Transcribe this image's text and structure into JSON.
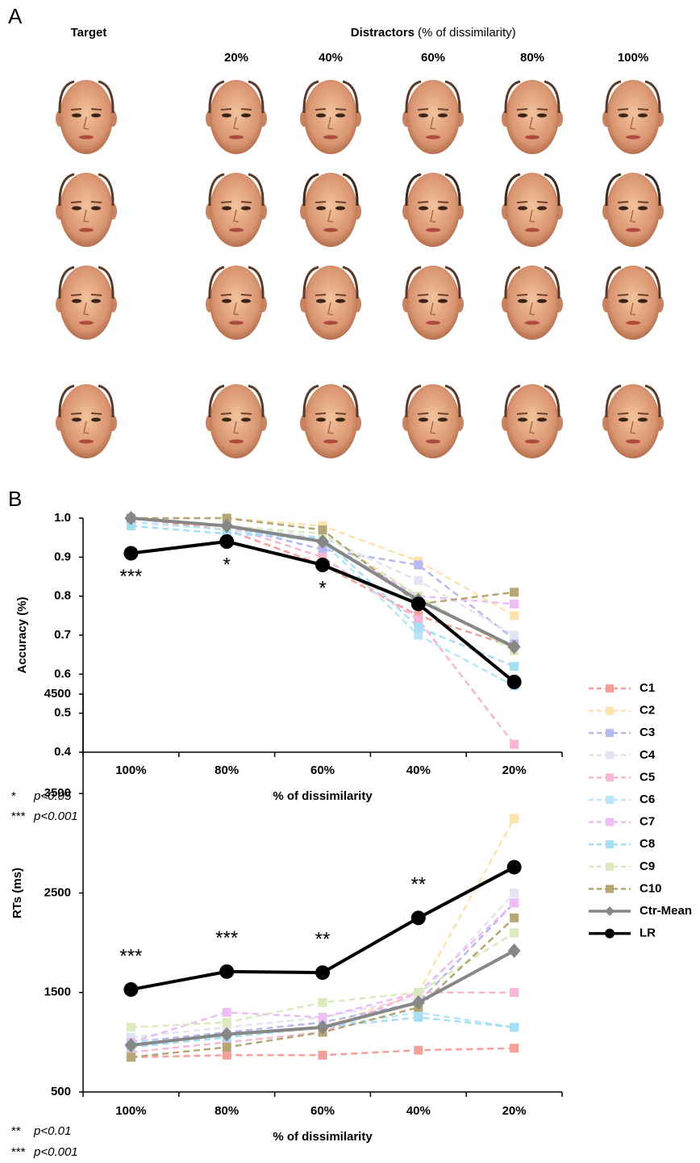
{
  "panel_a": {
    "label": "A",
    "target": "Target",
    "distractors": "Distractors",
    "distractors_note": "(% of dissimilarity)",
    "columns": [
      "20%",
      "40%",
      "60%",
      "80%",
      "100%"
    ]
  },
  "panel_b_label": "B",
  "chart_data": [
    {
      "type": "line",
      "y_label": "Accuracy (%)",
      "x_label": "% of dissimilarity",
      "categories": [
        "100%",
        "80%",
        "60%",
        "40%",
        "20%"
      ],
      "ylim": [
        0.4,
        1.0
      ],
      "yticks": [
        0.4,
        0.5,
        0.6,
        0.7,
        0.8,
        0.9,
        {
          "value": 1,
          "label": "1.0"
        }
      ],
      "significance": [
        "***",
        "*",
        "*",
        null,
        null
      ],
      "footnotes": [
        {
          "symbol": "*",
          "text": "p<0.05"
        },
        {
          "symbol": "***",
          "text": "p<0.001"
        }
      ],
      "series": [
        {
          "name": "C1",
          "color": "#f4a09a",
          "marker": "square",
          "dashed": true,
          "values": [
            1.0,
            0.97,
            0.88,
            0.75,
            0.67
          ]
        },
        {
          "name": "C2",
          "color": "#fde2ad",
          "marker": "square",
          "dashed": true,
          "values": [
            1.0,
            1.0,
            0.98,
            0.89,
            0.75
          ]
        },
        {
          "name": "C3",
          "color": "#b6b8f0",
          "marker": "square",
          "dashed": true,
          "values": [
            1.0,
            0.98,
            0.92,
            0.88,
            0.69
          ]
        },
        {
          "name": "C4",
          "color": "#e2e4f4",
          "marker": "square",
          "dashed": true,
          "values": [
            1.0,
            0.98,
            0.95,
            0.84,
            0.7
          ]
        },
        {
          "name": "C5",
          "color": "#f8b6d6",
          "marker": "square",
          "dashed": true,
          "values": [
            1.0,
            0.98,
            0.9,
            0.74,
            0.42
          ]
        },
        {
          "name": "C6",
          "color": "#b6e6f8",
          "marker": "square",
          "dashed": true,
          "values": [
            0.99,
            0.97,
            0.94,
            0.7,
            0.57
          ]
        },
        {
          "name": "C7",
          "color": "#ecbef4",
          "marker": "square",
          "dashed": true,
          "values": [
            1.0,
            0.98,
            0.94,
            0.8,
            0.78
          ]
        },
        {
          "name": "C8",
          "color": "#a6def4",
          "marker": "square",
          "dashed": true,
          "values": [
            0.98,
            0.96,
            0.95,
            0.72,
            0.62
          ]
        },
        {
          "name": "C9",
          "color": "#daeabe",
          "marker": "square",
          "dashed": true,
          "values": [
            1.0,
            0.98,
            0.96,
            0.8,
            0.66
          ]
        },
        {
          "name": "C10",
          "color": "#b6a676",
          "marker": "square",
          "dashed": true,
          "values": [
            1.0,
            1.0,
            0.97,
            0.78,
            0.81
          ]
        },
        {
          "name": "Ctr-Mean",
          "color": "#878787",
          "marker": "diamond",
          "dashed": false,
          "values": [
            1.0,
            0.98,
            0.94,
            0.79,
            0.67
          ]
        },
        {
          "name": "LR",
          "color": "#000000",
          "marker": "circle",
          "dashed": false,
          "values": [
            0.91,
            0.94,
            0.88,
            0.78,
            0.58
          ]
        }
      ]
    },
    {
      "type": "line",
      "y_label": "RTs (ms)",
      "x_label": "% of dissimilarity",
      "categories": [
        "100%",
        "80%",
        "60%",
        "40%",
        "20%"
      ],
      "ylim": [
        500,
        4500
      ],
      "yticks": [
        500,
        1500,
        2500,
        3500,
        4500
      ],
      "significance": [
        "***",
        "***",
        "**",
        "**",
        null
      ],
      "footnotes": [
        {
          "symbol": "**",
          "text": "p<0.01"
        },
        {
          "symbol": "***",
          "text": "p<0.001"
        }
      ],
      "series": [
        {
          "color": "#f4a09a",
          "marker": "square",
          "dashed": true,
          "values": [
            850,
            870,
            870,
            920,
            940
          ]
        },
        {
          "color": "#fde2ad",
          "marker": "square",
          "dashed": true,
          "values": [
            950,
            1050,
            1150,
            1500,
            3250
          ]
        },
        {
          "color": "#b6b8f0",
          "marker": "square",
          "dashed": true,
          "values": [
            1000,
            1100,
            1200,
            1400,
            2400
          ]
        },
        {
          "color": "#e2e4f4",
          "marker": "square",
          "dashed": true,
          "values": [
            1050,
            1150,
            1250,
            1450,
            2500
          ]
        },
        {
          "color": "#f8b6d6",
          "marker": "square",
          "dashed": true,
          "values": [
            900,
            1000,
            1100,
            1500,
            1500
          ]
        },
        {
          "color": "#b6e6f8",
          "marker": "square",
          "dashed": true,
          "values": [
            1000,
            1050,
            1150,
            1300,
            1150
          ]
        },
        {
          "color": "#ecbef4",
          "marker": "square",
          "dashed": true,
          "values": [
            1000,
            1300,
            1250,
            1500,
            2400
          ]
        },
        {
          "color": "#a6def4",
          "marker": "square",
          "dashed": true,
          "values": [
            950,
            1050,
            1150,
            1250,
            1150
          ]
        },
        {
          "color": "#daeabe",
          "marker": "square",
          "dashed": true,
          "values": [
            1150,
            1200,
            1400,
            1500,
            2100
          ]
        },
        {
          "color": "#b6a676",
          "marker": "square",
          "dashed": true,
          "values": [
            850,
            950,
            1100,
            1350,
            2250
          ]
        },
        {
          "color": "#878787",
          "marker": "diamond",
          "dashed": false,
          "values": [
            970,
            1080,
            1150,
            1400,
            1920
          ]
        },
        {
          "color": "#000000",
          "marker": "circle",
          "dashed": false,
          "values": [
            1530,
            1710,
            1700,
            2250,
            2760
          ]
        }
      ]
    }
  ]
}
